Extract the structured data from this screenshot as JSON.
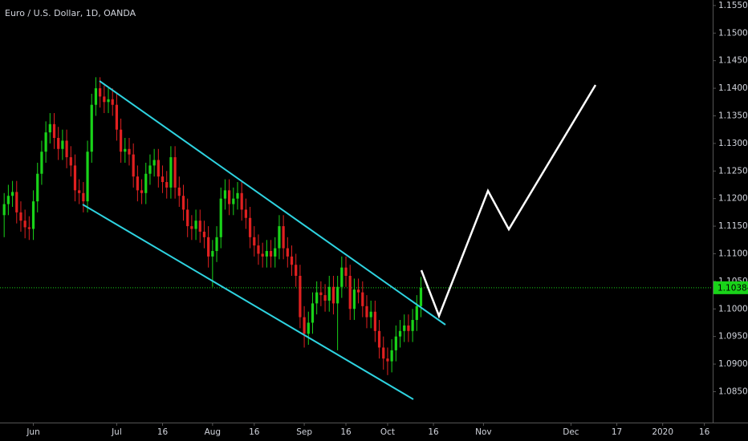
{
  "chart_data": {
    "type": "candlestick",
    "title": "Euro / U.S. Dollar, 1D, OANDA",
    "up_color": "#19d319",
    "down_color": "#e02020",
    "xlim": [
      -1,
      170
    ],
    "ylim": [
      1.0794,
      1.156
    ],
    "xticks": [
      {
        "value": 7,
        "label": "Jun"
      },
      {
        "value": 27,
        "label": "Jul"
      },
      {
        "value": 38,
        "label": "16"
      },
      {
        "value": 50,
        "label": "Aug"
      },
      {
        "value": 60,
        "label": "16"
      },
      {
        "value": 72,
        "label": "Sep"
      },
      {
        "value": 82,
        "label": "16"
      },
      {
        "value": 92,
        "label": "Oct"
      },
      {
        "value": 103,
        "label": "16"
      },
      {
        "value": 115,
        "label": "Nov"
      },
      {
        "value": 136,
        "label": "Dec"
      },
      {
        "value": 147,
        "label": "17"
      },
      {
        "value": 158,
        "label": "2020"
      },
      {
        "value": 168,
        "label": "16"
      }
    ],
    "yticks": [
      {
        "value": 1.155,
        "label": "1.15500"
      },
      {
        "value": 1.15,
        "label": "1.15000"
      },
      {
        "value": 1.145,
        "label": "1.14500"
      },
      {
        "value": 1.14,
        "label": "1.14000"
      },
      {
        "value": 1.135,
        "label": "1.13500"
      },
      {
        "value": 1.13,
        "label": "1.13000"
      },
      {
        "value": 1.125,
        "label": "1.12500"
      },
      {
        "value": 1.12,
        "label": "1.12000"
      },
      {
        "value": 1.115,
        "label": "1.11500"
      },
      {
        "value": 1.11,
        "label": "1.11000"
      },
      {
        "value": 1.105,
        "label": "1.10500"
      },
      {
        "value": 1.1,
        "label": "1.10000"
      },
      {
        "value": 1.095,
        "label": "1.09500"
      },
      {
        "value": 1.09,
        "label": "1.09000"
      },
      {
        "value": 1.085,
        "label": "1.08500"
      }
    ],
    "last_price": 1.10384,
    "open": [
      1.117,
      1.119,
      1.1205,
      1.1212,
      1.1175,
      1.116,
      1.1148,
      1.1145,
      1.1195,
      1.1245,
      1.1285,
      1.132,
      1.1335,
      1.131,
      1.129,
      1.1305,
      1.1275,
      1.126,
      1.1215,
      1.121,
      1.1195,
      1.1285,
      1.137,
      1.14,
      1.1385,
      1.1375,
      1.138,
      1.137,
      1.1325,
      1.1285,
      1.129,
      1.128,
      1.124,
      1.1215,
      1.121,
      1.1245,
      1.126,
      1.127,
      1.124,
      1.123,
      1.122,
      1.1275,
      1.122,
      1.1205,
      1.118,
      1.115,
      1.1145,
      1.116,
      1.114,
      1.113,
      1.1095,
      1.1105,
      1.113,
      1.12,
      1.1215,
      1.119,
      1.12,
      1.121,
      1.118,
      1.1165,
      1.113,
      1.1115,
      1.11,
      1.1095,
      1.1105,
      1.1095,
      1.111,
      1.115,
      1.111,
      1.1095,
      1.108,
      1.106,
      1.0985,
      1.0955,
      1.0975,
      1.101,
      1.103,
      1.1025,
      1.1015,
      1.104,
      1.101,
      1.104,
      1.1075,
      1.106,
      1.1,
      1.1035,
      1.103,
      1.1005,
      1.0985,
      1.0995,
      1.096,
      1.093,
      1.091,
      1.0905,
      1.0925,
      1.095,
      1.096,
      1.097,
      1.096,
      1.098,
      1.1005
    ],
    "high": [
      1.121,
      1.1225,
      1.1232,
      1.1232,
      1.1195,
      1.118,
      1.1168,
      1.1215,
      1.1265,
      1.1305,
      1.134,
      1.1355,
      1.1355,
      1.133,
      1.1325,
      1.1325,
      1.1295,
      1.128,
      1.1235,
      1.123,
      1.1305,
      1.139,
      1.142,
      1.142,
      1.1405,
      1.14,
      1.14,
      1.139,
      1.1345,
      1.131,
      1.131,
      1.13,
      1.126,
      1.1235,
      1.1265,
      1.128,
      1.129,
      1.129,
      1.126,
      1.125,
      1.1295,
      1.1295,
      1.124,
      1.1225,
      1.12,
      1.117,
      1.118,
      1.118,
      1.116,
      1.115,
      1.1125,
      1.115,
      1.122,
      1.1235,
      1.1235,
      1.122,
      1.123,
      1.123,
      1.12,
      1.1185,
      1.115,
      1.1135,
      1.112,
      1.1125,
      1.1125,
      1.113,
      1.117,
      1.117,
      1.113,
      1.1115,
      1.11,
      1.108,
      1.1005,
      1.0995,
      1.103,
      1.105,
      1.105,
      1.1045,
      1.106,
      1.106,
      1.106,
      1.1095,
      1.1095,
      1.108,
      1.1055,
      1.1055,
      1.105,
      1.1025,
      1.1015,
      1.1015,
      1.098,
      1.095,
      1.093,
      1.0945,
      1.097,
      1.098,
      1.099,
      1.099,
      1.1,
      1.1025,
      1.1058
    ],
    "low": [
      1.113,
      1.117,
      1.1185,
      1.1155,
      1.114,
      1.1128,
      1.1125,
      1.1125,
      1.1175,
      1.1225,
      1.1265,
      1.13,
      1.129,
      1.127,
      1.127,
      1.1255,
      1.124,
      1.1195,
      1.119,
      1.1175,
      1.1175,
      1.1265,
      1.135,
      1.1365,
      1.1355,
      1.1355,
      1.135,
      1.1305,
      1.1265,
      1.1265,
      1.126,
      1.122,
      1.1195,
      1.119,
      1.119,
      1.1225,
      1.124,
      1.122,
      1.121,
      1.12,
      1.12,
      1.12,
      1.1185,
      1.116,
      1.113,
      1.1125,
      1.1125,
      1.112,
      1.111,
      1.1075,
      1.104,
      1.1085,
      1.111,
      1.118,
      1.117,
      1.117,
      1.118,
      1.116,
      1.1145,
      1.111,
      1.1095,
      1.108,
      1.1075,
      1.1075,
      1.1075,
      1.1075,
      1.109,
      1.109,
      1.1075,
      1.106,
      1.104,
      1.0965,
      1.093,
      1.0935,
      1.0955,
      1.099,
      1.1005,
      1.0995,
      1.0995,
      1.099,
      1.0925,
      1.102,
      1.104,
      1.098,
      1.098,
      1.101,
      1.0985,
      1.0965,
      1.0965,
      1.094,
      1.091,
      1.089,
      1.088,
      1.0885,
      1.0905,
      1.093,
      1.094,
      1.094,
      1.094,
      1.096,
      1.0985
    ],
    "close": [
      1.119,
      1.1205,
      1.1212,
      1.1175,
      1.116,
      1.1148,
      1.1145,
      1.1195,
      1.1245,
      1.1285,
      1.132,
      1.1335,
      1.131,
      1.129,
      1.1305,
      1.1275,
      1.126,
      1.1215,
      1.121,
      1.1195,
      1.1285,
      1.137,
      1.14,
      1.1385,
      1.1375,
      1.138,
      1.137,
      1.1325,
      1.1285,
      1.129,
      1.128,
      1.124,
      1.1215,
      1.121,
      1.1245,
      1.126,
      1.127,
      1.124,
      1.123,
      1.122,
      1.1275,
      1.122,
      1.1205,
      1.118,
      1.115,
      1.1145,
      1.116,
      1.114,
      1.113,
      1.1095,
      1.1105,
      1.113,
      1.12,
      1.1215,
      1.119,
      1.12,
      1.121,
      1.118,
      1.1165,
      1.113,
      1.1115,
      1.11,
      1.1095,
      1.1105,
      1.1095,
      1.111,
      1.115,
      1.111,
      1.1095,
      1.108,
      1.106,
      1.0985,
      1.0955,
      1.0975,
      1.101,
      1.103,
      1.1025,
      1.1015,
      1.104,
      1.101,
      1.104,
      1.1075,
      1.106,
      1.1,
      1.1035,
      1.103,
      1.1005,
      1.0985,
      1.0995,
      1.096,
      1.093,
      1.091,
      1.0905,
      1.0925,
      1.095,
      1.096,
      1.097,
      1.096,
      1.098,
      1.1005,
      1.1038
    ]
  }
}
